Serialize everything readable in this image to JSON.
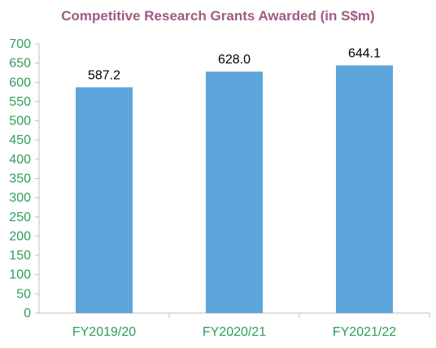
{
  "chart_data": {
    "type": "bar",
    "title": "Competitive Research Grants Awarded (in S$m)",
    "categories": [
      "FY2019/20",
      "FY2020/21",
      "FY2021/22"
    ],
    "values": [
      587.2,
      628.0,
      644.1
    ],
    "data_labels": [
      "587.2",
      "628.0",
      "644.1"
    ],
    "xlabel": "",
    "ylabel": "",
    "ylim": [
      0,
      700
    ],
    "yticks": [
      "0",
      "50",
      "100",
      "150",
      "200",
      "250",
      "300",
      "350",
      "400",
      "450",
      "500",
      "550",
      "600",
      "650",
      "700"
    ],
    "grid": false,
    "legend": "none"
  },
  "colors": {
    "bar": "#5DA5DA",
    "title": "#9E5A83",
    "axis_text": "#2E9E5B",
    "axis_line": "#BFBFBF",
    "data_label": "#000000"
  }
}
